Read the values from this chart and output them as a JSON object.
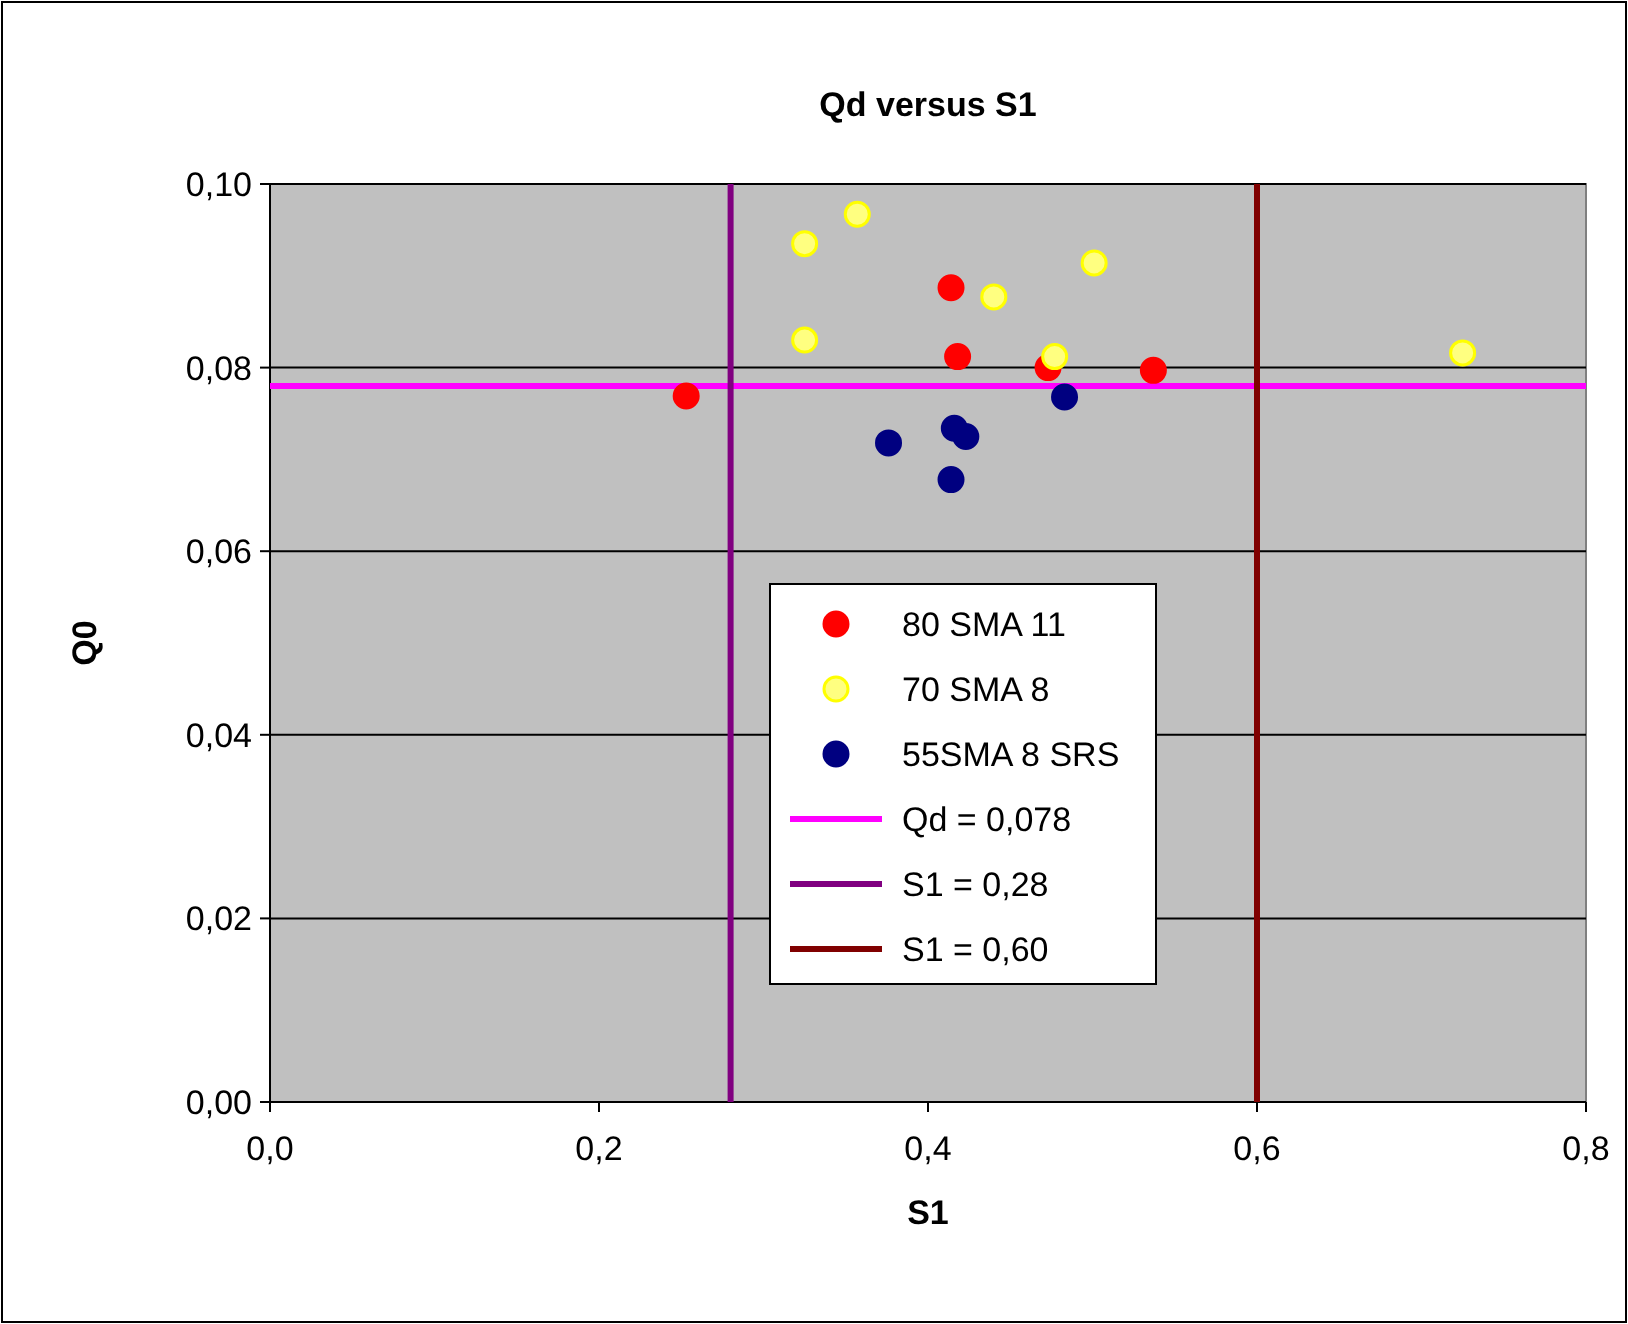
{
  "chart_data": {
    "type": "scatter",
    "title": "Qd versus S1",
    "xlabel": "S1",
    "ylabel": "Q0",
    "xlim": [
      0,
      0.8
    ],
    "xticks": [
      {
        "value": 0,
        "label": "0,0"
      },
      {
        "value": 0.2,
        "label": "0,2"
      },
      {
        "value": 0.4,
        "label": "0,4"
      },
      {
        "value": 0.6,
        "label": "0,6"
      },
      {
        "value": 0.8,
        "label": "0,8"
      }
    ],
    "ylim": [
      0,
      0.1
    ],
    "yticks": [
      {
        "value": 0,
        "label": "0,00"
      },
      {
        "value": 0.02,
        "label": "0,02"
      },
      {
        "value": 0.04,
        "label": "0,04"
      },
      {
        "value": 0.06,
        "label": "0,06"
      },
      {
        "value": 0.08,
        "label": "0,08"
      },
      {
        "value": 0.1,
        "label": "0,10"
      }
    ],
    "grid": "y",
    "legend": "bottom",
    "marker": "circle",
    "series": [
      {
        "name": "80 SMA 11",
        "color": "#ff0000",
        "x": [
          0.253,
          0.414,
          0.418,
          0.473,
          0.537
        ],
        "values": [
          0.0769,
          0.0887,
          0.0812,
          0.08,
          0.0797
        ]
      },
      {
        "name": "70 SMA 8",
        "color": "#ffff80",
        "x": [
          0.325,
          0.357,
          0.325,
          0.44,
          0.501,
          0.477,
          0.725
        ],
        "values": [
          0.0935,
          0.0967,
          0.083,
          0.0877,
          0.0914,
          0.0812,
          0.0816
        ]
      },
      {
        "name": "55SMA 8 SRS",
        "color": "#000080",
        "x": [
          0.376,
          0.416,
          0.423,
          0.414,
          0.483
        ],
        "values": [
          0.0718,
          0.0734,
          0.0725,
          0.0678,
          0.0768
        ]
      },
      {
        "name": "Qd = 0,078",
        "type": "line",
        "marker": "none",
        "color": "#ff00ff",
        "x": [
          0,
          0.8
        ],
        "values": [
          0.078,
          0.078
        ]
      },
      {
        "name": "S1 = 0,28",
        "type": "line",
        "marker": "none",
        "color": "#800080",
        "x": [
          0.28,
          0.28
        ],
        "values": [
          0,
          0.1
        ]
      },
      {
        "name": "S1 = 0,60",
        "type": "line",
        "marker": "none",
        "color": "#800000",
        "x": [
          0.6,
          0.6
        ],
        "values": [
          0,
          0.1
        ]
      }
    ]
  }
}
